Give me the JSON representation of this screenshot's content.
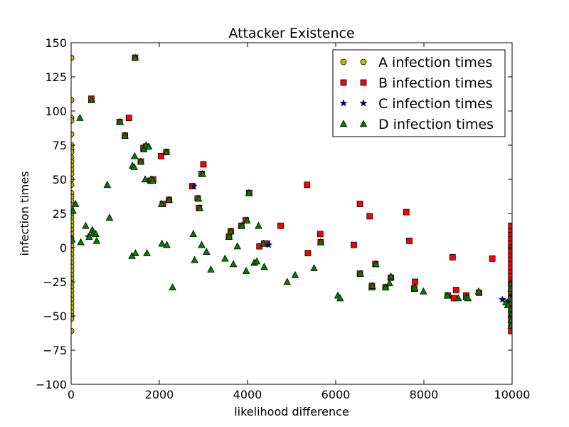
{
  "chart_data": {
    "type": "scatter",
    "title": "Attacker Existence",
    "xlabel": "likelihood difference",
    "ylabel": "infection times",
    "xlim": [
      0,
      10000
    ],
    "ylim": [
      -100,
      150
    ],
    "xticks": [
      0,
      2000,
      4000,
      6000,
      8000,
      10000
    ],
    "xtick_labels": [
      "0",
      "2000",
      "4000",
      "6000",
      "8000",
      "10000"
    ],
    "yticks": [
      -100,
      -75,
      -50,
      -25,
      0,
      25,
      50,
      75,
      100,
      125,
      150
    ],
    "ytick_labels": [
      "−100",
      "−75",
      "−50",
      "−25",
      "0",
      "25",
      "50",
      "75",
      "100",
      "125",
      "150"
    ],
    "grid": false,
    "legend_position": "top-right",
    "series": [
      {
        "name": "A infection times",
        "marker": "circle",
        "color": "#bfbf00",
        "points": [
          [
            0,
            139
          ],
          [
            0,
            108
          ],
          [
            0,
            95
          ],
          [
            0,
            93
          ],
          [
            0,
            83
          ],
          [
            0,
            75
          ],
          [
            0,
            72
          ],
          [
            0,
            70
          ],
          [
            0,
            66
          ],
          [
            0,
            63
          ],
          [
            0,
            60
          ],
          [
            0,
            57
          ],
          [
            0,
            54
          ],
          [
            0,
            50
          ],
          [
            0,
            46
          ],
          [
            0,
            40
          ],
          [
            0,
            37
          ],
          [
            0,
            34
          ],
          [
            0,
            31
          ],
          [
            0,
            28
          ],
          [
            0,
            25
          ],
          [
            0,
            22
          ],
          [
            0,
            19
          ],
          [
            0,
            16
          ],
          [
            0,
            13
          ],
          [
            0,
            10
          ],
          [
            0,
            7
          ],
          [
            0,
            4
          ],
          [
            0,
            1
          ],
          [
            0,
            -2
          ],
          [
            0,
            -5
          ],
          [
            0,
            -8
          ],
          [
            0,
            -11
          ],
          [
            0,
            -14
          ],
          [
            0,
            -17
          ],
          [
            0,
            -20
          ],
          [
            0,
            -23
          ],
          [
            0,
            -26
          ],
          [
            0,
            -29
          ],
          [
            0,
            -32
          ],
          [
            0,
            -35
          ],
          [
            0,
            -38
          ],
          [
            0,
            -41
          ],
          [
            0,
            -44
          ],
          [
            0,
            -47
          ],
          [
            0,
            -50
          ],
          [
            0,
            -52
          ],
          [
            0,
            -61
          ]
        ]
      },
      {
        "name": "B infection times",
        "marker": "square",
        "color": "#ff0000",
        "points": [
          [
            460,
            109
          ],
          [
            1100,
            92
          ],
          [
            1220,
            82
          ],
          [
            1310,
            95
          ],
          [
            1450,
            139
          ],
          [
            1580,
            63
          ],
          [
            1640,
            73
          ],
          [
            1700,
            74
          ],
          [
            1800,
            49
          ],
          [
            1860,
            50
          ],
          [
            2040,
            67
          ],
          [
            2080,
            32
          ],
          [
            2160,
            70
          ],
          [
            2220,
            35
          ],
          [
            2750,
            45
          ],
          [
            2870,
            36
          ],
          [
            2900,
            29
          ],
          [
            2960,
            54
          ],
          [
            3000,
            61
          ],
          [
            3580,
            8
          ],
          [
            3620,
            12
          ],
          [
            3860,
            16
          ],
          [
            3960,
            20
          ],
          [
            4040,
            40
          ],
          [
            4270,
            1
          ],
          [
            4380,
            3
          ],
          [
            4440,
            3
          ],
          [
            4750,
            16
          ],
          [
            5350,
            46
          ],
          [
            5370,
            -4
          ],
          [
            5650,
            10
          ],
          [
            5660,
            4
          ],
          [
            6410,
            2
          ],
          [
            6550,
            32
          ],
          [
            6550,
            -19
          ],
          [
            6770,
            23
          ],
          [
            6820,
            -28
          ],
          [
            6900,
            -12
          ],
          [
            7130,
            -29
          ],
          [
            7250,
            -22
          ],
          [
            7600,
            26
          ],
          [
            7670,
            5
          ],
          [
            7780,
            -30
          ],
          [
            7800,
            -25
          ],
          [
            8540,
            -35
          ],
          [
            8650,
            -7
          ],
          [
            8680,
            -37
          ],
          [
            8730,
            -31
          ],
          [
            8960,
            -35
          ],
          [
            9250,
            -33
          ],
          [
            9550,
            -8
          ],
          [
            9980,
            16
          ],
          [
            9980,
            12
          ],
          [
            9980,
            9
          ],
          [
            9980,
            6
          ],
          [
            9980,
            3
          ],
          [
            9980,
            0
          ],
          [
            9980,
            -3
          ],
          [
            9980,
            -6
          ],
          [
            9980,
            -9
          ],
          [
            9980,
            -12
          ],
          [
            9980,
            -15
          ],
          [
            9980,
            -18
          ],
          [
            9980,
            -21
          ],
          [
            9980,
            -24
          ],
          [
            9980,
            -27
          ],
          [
            9980,
            -30
          ],
          [
            9980,
            -33
          ],
          [
            9980,
            -36
          ],
          [
            9980,
            -39
          ],
          [
            9980,
            -42
          ],
          [
            9980,
            -45
          ],
          [
            9980,
            -48
          ],
          [
            9980,
            -52
          ],
          [
            9980,
            -56
          ],
          [
            9980,
            -61
          ]
        ]
      },
      {
        "name": "C infection times",
        "marker": "star",
        "color": "#000080",
        "points": [
          [
            390,
            8
          ],
          [
            2780,
            45
          ],
          [
            4480,
            2
          ],
          [
            9780,
            -38
          ],
          [
            9900,
            -40
          ],
          [
            9980,
            -36
          ],
          [
            9980,
            -44
          ]
        ]
      },
      {
        "name": "D infection times",
        "marker": "triangle",
        "color": "#008000",
        "points": [
          [
            20,
            6
          ],
          [
            40,
            27
          ],
          [
            100,
            32
          ],
          [
            200,
            95
          ],
          [
            220,
            4
          ],
          [
            330,
            16
          ],
          [
            410,
            8
          ],
          [
            460,
            108
          ],
          [
            480,
            13
          ],
          [
            510,
            11
          ],
          [
            560,
            10
          ],
          [
            580,
            5
          ],
          [
            820,
            46
          ],
          [
            870,
            22
          ],
          [
            1110,
            92
          ],
          [
            1220,
            82
          ],
          [
            1380,
            -6
          ],
          [
            1390,
            60
          ],
          [
            1430,
            59
          ],
          [
            1440,
            67
          ],
          [
            1460,
            -4
          ],
          [
            1450,
            139
          ],
          [
            1580,
            63
          ],
          [
            1650,
            72
          ],
          [
            1680,
            50
          ],
          [
            1700,
            75
          ],
          [
            1720,
            -4
          ],
          [
            1760,
            74
          ],
          [
            1810,
            50
          ],
          [
            1850,
            49
          ],
          [
            2050,
            32
          ],
          [
            2060,
            3
          ],
          [
            2160,
            70
          ],
          [
            2170,
            2
          ],
          [
            2220,
            35
          ],
          [
            2300,
            -29
          ],
          [
            2770,
            10
          ],
          [
            2800,
            -9
          ],
          [
            2890,
            36
          ],
          [
            2920,
            29
          ],
          [
            2960,
            2
          ],
          [
            2980,
            54
          ],
          [
            3070,
            -3
          ],
          [
            3170,
            -16
          ],
          [
            3490,
            -8
          ],
          [
            3580,
            8
          ],
          [
            3620,
            12
          ],
          [
            3680,
            -12
          ],
          [
            3770,
            1
          ],
          [
            3870,
            16
          ],
          [
            3970,
            -17
          ],
          [
            3990,
            20
          ],
          [
            4030,
            40
          ],
          [
            4150,
            -11
          ],
          [
            4210,
            -10
          ],
          [
            4250,
            16
          ],
          [
            4360,
            3
          ],
          [
            4380,
            -14
          ],
          [
            4900,
            -25
          ],
          [
            5080,
            -20
          ],
          [
            5510,
            -15
          ],
          [
            5660,
            4
          ],
          [
            6050,
            -35
          ],
          [
            6100,
            -37
          ],
          [
            6560,
            -19
          ],
          [
            6820,
            -29
          ],
          [
            6830,
            -28
          ],
          [
            6910,
            -12
          ],
          [
            7130,
            -29
          ],
          [
            7220,
            -26
          ],
          [
            7250,
            -21
          ],
          [
            7790,
            -30
          ],
          [
            7790,
            -29
          ],
          [
            7990,
            -32
          ],
          [
            8530,
            -35
          ],
          [
            8780,
            -37
          ],
          [
            8960,
            -36
          ],
          [
            9000,
            -37
          ],
          [
            9240,
            -32
          ],
          [
            9860,
            -40
          ],
          [
            9900,
            -42
          ],
          [
            9950,
            -37
          ],
          [
            9980,
            -45
          ],
          [
            9980,
            -49
          ],
          [
            9980,
            -53
          ],
          [
            9980,
            -57
          ],
          [
            9980,
            -30
          ],
          [
            9980,
            -26
          ]
        ]
      }
    ]
  }
}
